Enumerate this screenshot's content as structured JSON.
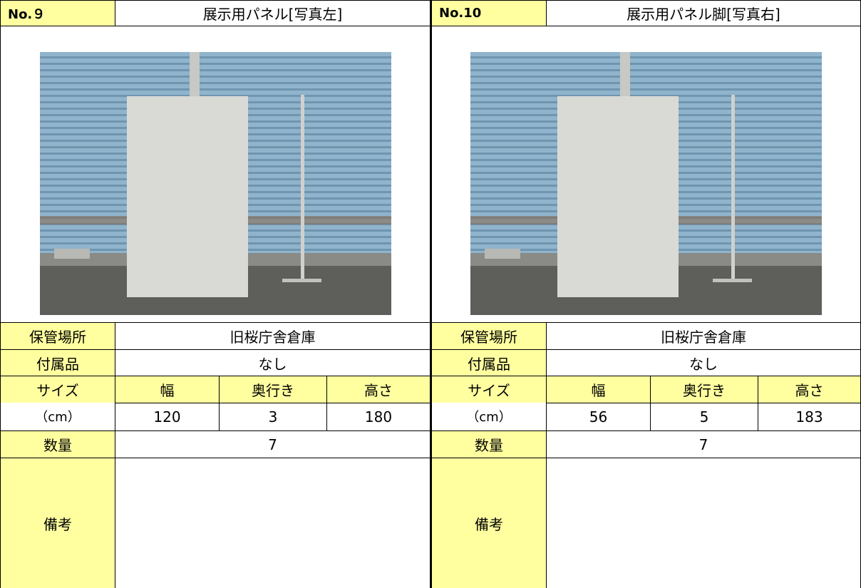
{
  "items": [
    {
      "number": "No.９",
      "title": "展示用パネル[写真左]",
      "location_label": "保管場所",
      "location": "旧桜庁舎倉庫",
      "accessories_label": "付属品",
      "accessories": "なし",
      "size_label": "サイズ",
      "size_unit": "（cm）",
      "size_headers": [
        "幅",
        "奥行き",
        "高さ"
      ],
      "size_values": [
        120,
        3,
        180
      ],
      "quantity_label": "数量",
      "quantity": 7,
      "notes_label": "備考"
    },
    {
      "number": "No.10",
      "title": "展示用パネル脚[写真右]",
      "location_label": "保管場所",
      "location": "旧桜庁舎倉庫",
      "accessories_label": "付属品",
      "accessories": "なし",
      "size_label": "サイズ",
      "size_unit": "（cm）",
      "size_headers": [
        "幅",
        "奥行き",
        "高さ"
      ],
      "size_values": [
        56,
        5,
        183
      ],
      "quantity_label": "数量",
      "quantity": 7,
      "notes_label": "備考"
    }
  ]
}
